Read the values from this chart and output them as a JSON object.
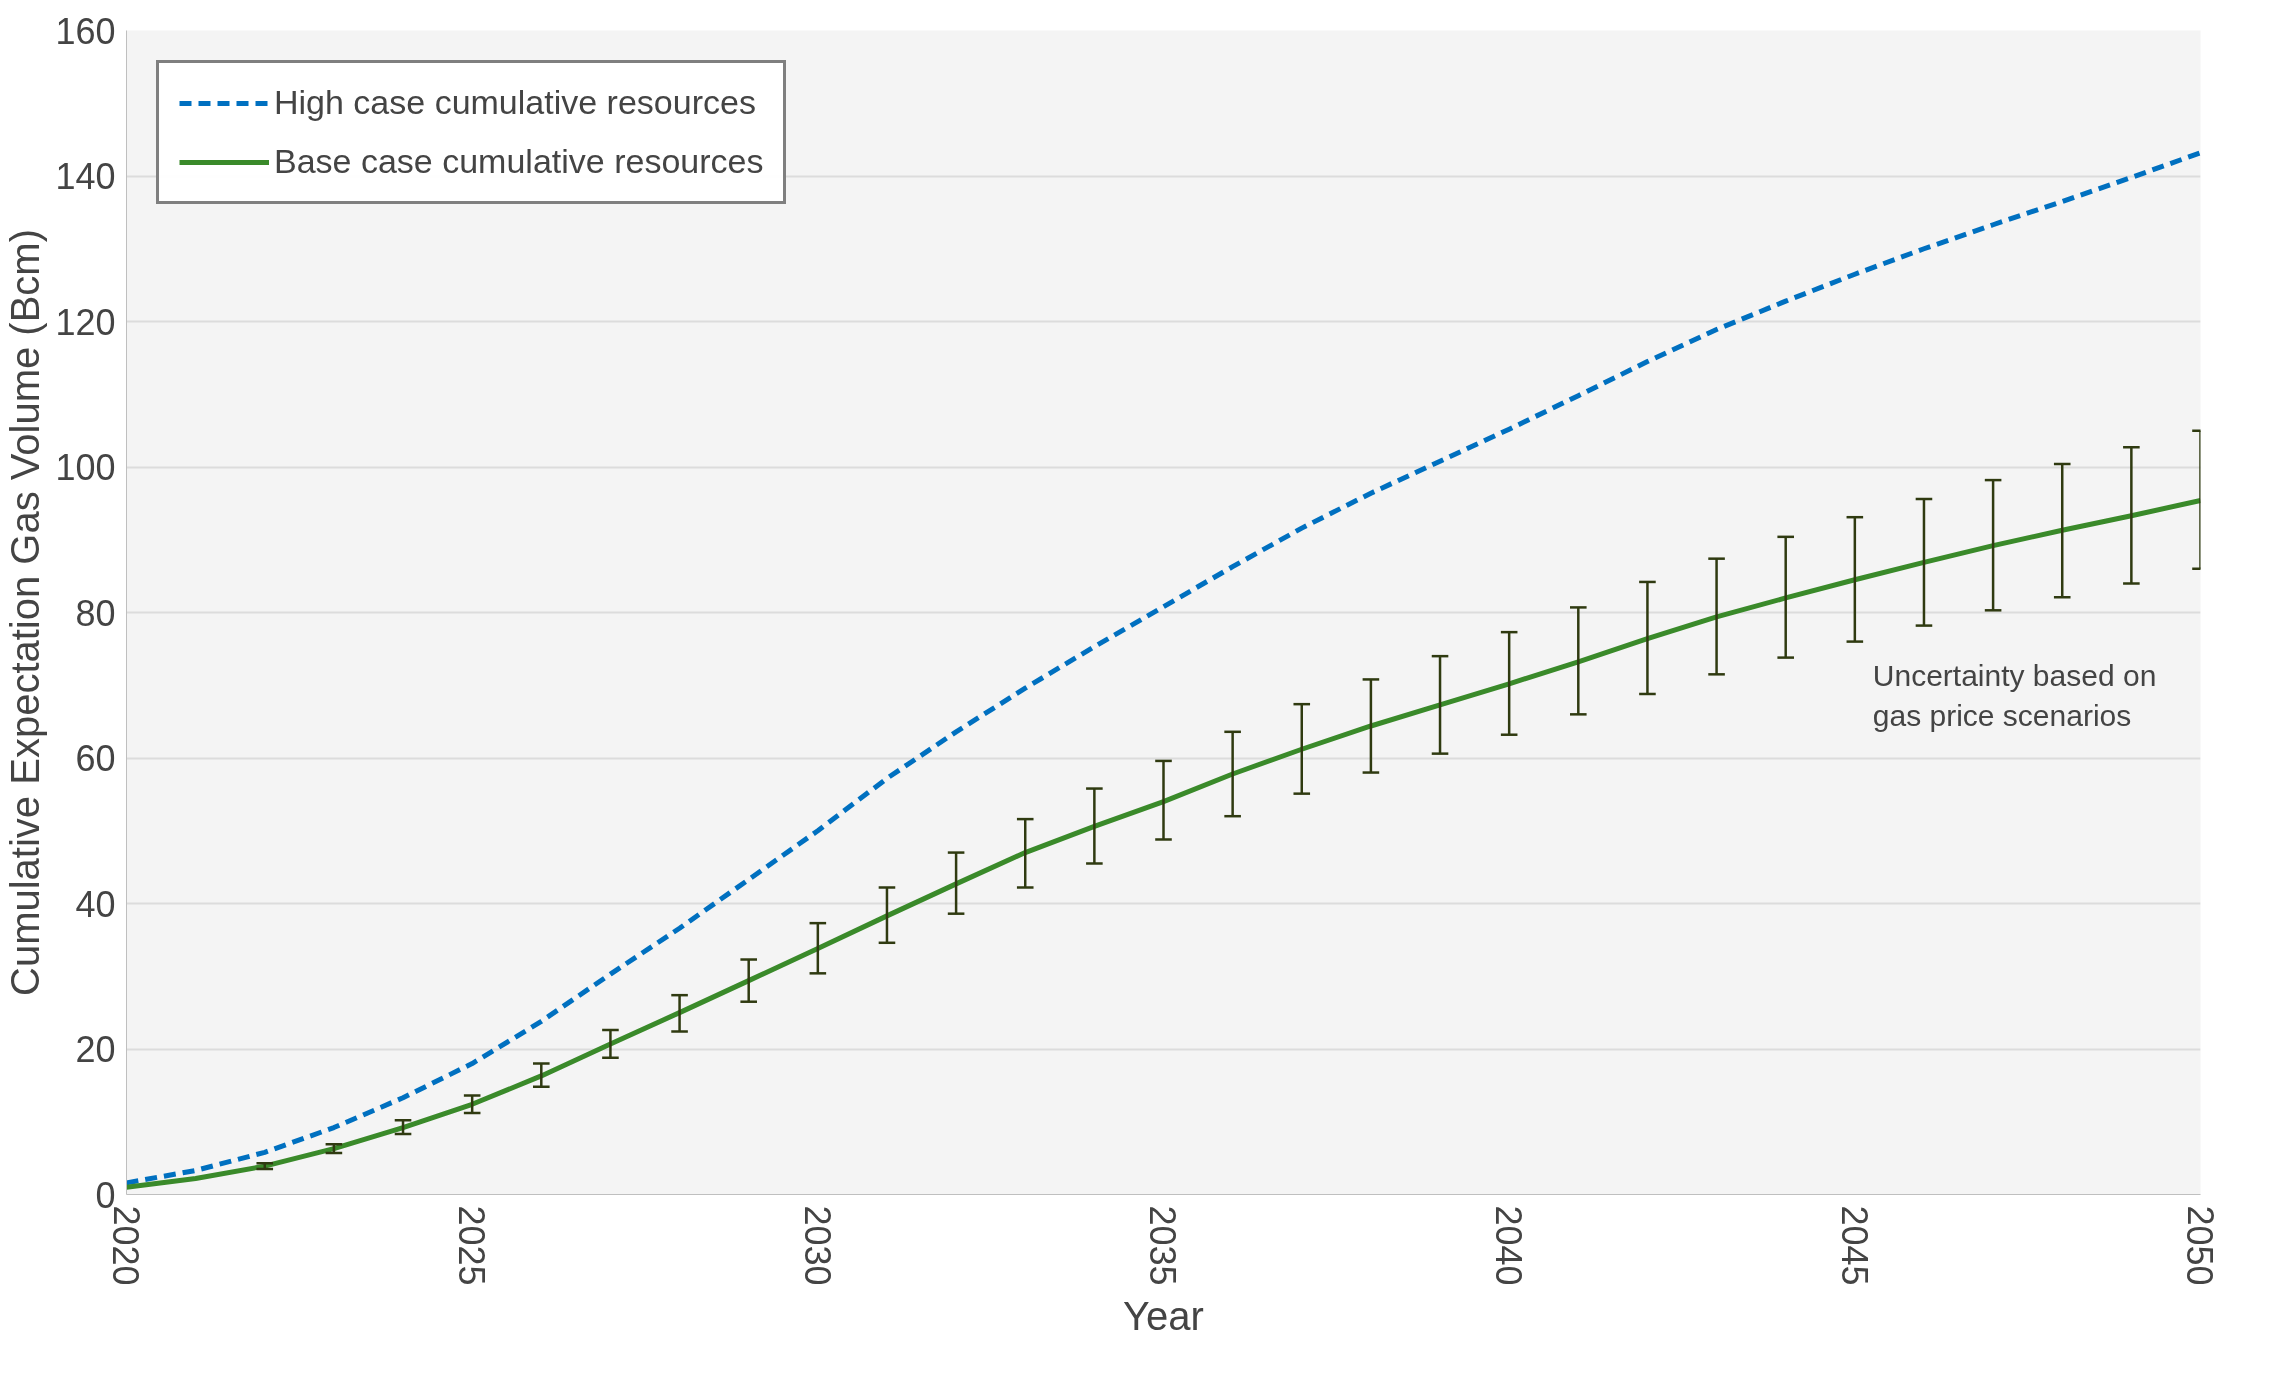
{
  "chart_data": {
    "type": "line",
    "xlabel": "Year",
    "ylabel": "Cumulative Expectation Gas Volume (Bcm)",
    "x": [
      2020,
      2021,
      2022,
      2023,
      2024,
      2025,
      2026,
      2027,
      2028,
      2029,
      2030,
      2031,
      2032,
      2033,
      2034,
      2035,
      2036,
      2037,
      2038,
      2039,
      2040,
      2041,
      2042,
      2043,
      2044,
      2045,
      2046,
      2047,
      2048,
      2049,
      2050
    ],
    "series": [
      {
        "name": "High case cumulative resources",
        "color": "#0070c0",
        "line_style": "dashed",
        "values": [
          1.6,
          3.3,
          5.8,
          9.2,
          13.3,
          18,
          23.8,
          30.3,
          36.6,
          43.3,
          50,
          57.2,
          63.6,
          69.6,
          75.3,
          80.8,
          86.3,
          91.6,
          96.4,
          100.8,
          105.2,
          109.8,
          114.5,
          118.9,
          122.8,
          126.5,
          130,
          133.3,
          136.5,
          139.8,
          143.2
        ]
      },
      {
        "name": "Base case cumulative resources",
        "color": "#3a8a2a",
        "line_style": "solid",
        "values": [
          1,
          2.2,
          3.9,
          6.3,
          9.2,
          12.4,
          16.3,
          20.7,
          25,
          29.4,
          33.8,
          38.3,
          42.7,
          47,
          50.6,
          54,
          57.8,
          61.2,
          64.4,
          67.3,
          70.2,
          73.2,
          76.4,
          79.4,
          82,
          84.5,
          86.9,
          89.2,
          91.3,
          93.3,
          95.4
        ],
        "errors": [
          null,
          null,
          [
            3.5,
            4.3
          ],
          [
            5.7,
            6.9
          ],
          [
            8.3,
            10.2
          ],
          [
            11.2,
            13.6
          ],
          [
            14.8,
            18
          ],
          [
            18.8,
            22.6
          ],
          [
            22.4,
            27.4
          ],
          [
            26.5,
            32.3
          ],
          [
            30.4,
            37.3
          ],
          [
            34.6,
            42.2
          ],
          [
            38.6,
            47
          ],
          [
            42.2,
            51.6
          ],
          [
            45.5,
            55.8
          ],
          [
            48.8,
            59.6
          ],
          [
            52,
            63.6
          ],
          [
            55.1,
            67.4
          ],
          [
            58,
            70.8
          ],
          [
            60.6,
            74
          ],
          [
            63.2,
            77.3
          ],
          [
            66,
            80.7
          ],
          [
            68.8,
            84.2
          ],
          [
            71.5,
            87.4
          ],
          [
            73.8,
            90.4
          ],
          [
            76,
            93.1
          ],
          [
            78.2,
            95.6
          ],
          [
            80.3,
            98.2
          ],
          [
            82.1,
            100.4
          ],
          [
            84,
            102.7
          ],
          [
            86,
            105
          ]
        ]
      }
    ],
    "xlim": [
      2020,
      2050
    ],
    "xticks": [
      2020,
      2025,
      2030,
      2035,
      2040,
      2045,
      2050
    ],
    "ylim": [
      0,
      160
    ],
    "yticks": [
      0,
      20,
      40,
      60,
      80,
      100,
      120,
      140,
      160
    ],
    "grid": "y",
    "legend": "top left",
    "marker": "none",
    "annotations": [
      "Uncertainty based on gas price scenarios"
    ]
  }
}
